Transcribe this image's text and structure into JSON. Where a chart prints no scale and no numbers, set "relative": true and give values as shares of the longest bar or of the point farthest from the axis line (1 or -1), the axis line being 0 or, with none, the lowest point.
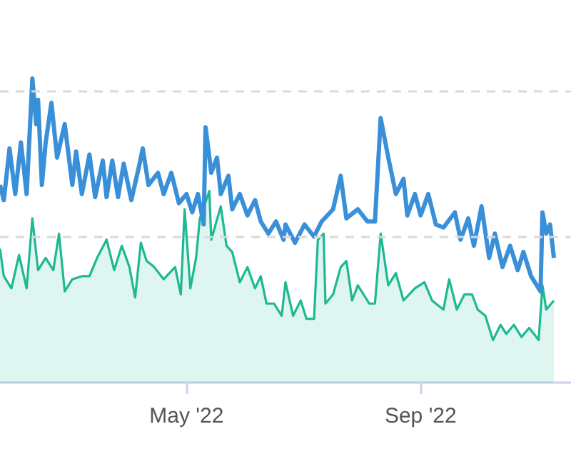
{
  "chart_data": {
    "type": "line",
    "relative": true,
    "xlim": [
      "2022-01-23",
      "2022-11-19"
    ],
    "ref_lines": [
      {
        "axis": "y",
        "value": 0.96,
        "color": "#d9d9d9",
        "line_style": "dashed"
      },
      {
        "axis": "y",
        "value": 0.48,
        "color": "#d9d9d9",
        "line_style": "dashed"
      }
    ],
    "xticks": [
      {
        "value": "2022-05-01",
        "label": "May '22"
      },
      {
        "value": "2022-09-01",
        "label": "Sep '22"
      }
    ],
    "series": [
      {
        "color": "#3a8fd9",
        "x": [
          "2022-01-23",
          "2022-01-25",
          "2022-01-28",
          "2022-01-31",
          "2022-02-03",
          "2022-02-06",
          "2022-02-09",
          "2022-02-11",
          "2022-02-12",
          "2022-02-14",
          "2022-02-16",
          "2022-02-19",
          "2022-02-22",
          "2022-02-26",
          "2022-03-02",
          "2022-03-04",
          "2022-03-07",
          "2022-03-11",
          "2022-03-14",
          "2022-03-18",
          "2022-03-20",
          "2022-03-23",
          "2022-03-26",
          "2022-03-29",
          "2022-04-02",
          "2022-04-06",
          "2022-04-08",
          "2022-04-11",
          "2022-04-16",
          "2022-04-19",
          "2022-04-23",
          "2022-04-27",
          "2022-05-01",
          "2022-05-04",
          "2022-05-07",
          "2022-05-10",
          "2022-05-11",
          "2022-05-14",
          "2022-05-17",
          "2022-05-19",
          "2022-05-23",
          "2022-05-25",
          "2022-05-29",
          "2022-06-02",
          "2022-06-06",
          "2022-06-09",
          "2022-06-13",
          "2022-06-17",
          "2022-06-21",
          "2022-06-22",
          "2022-06-27",
          "2022-07-02",
          "2022-07-07",
          "2022-07-11",
          "2022-07-17",
          "2022-07-21",
          "2022-07-24",
          "2022-07-30",
          "2022-08-04",
          "2022-08-08",
          "2022-08-11",
          "2022-08-15",
          "2022-08-19",
          "2022-08-23",
          "2022-08-25",
          "2022-08-29",
          "2022-09-01",
          "2022-09-05",
          "2022-09-09",
          "2022-09-13",
          "2022-09-19",
          "2022-09-22",
          "2022-09-26",
          "2022-09-29",
          "2022-10-03",
          "2022-10-07",
          "2022-10-10",
          "2022-10-14",
          "2022-10-18",
          "2022-10-22",
          "2022-10-25",
          "2022-10-29",
          "2022-11-03",
          "2022-11-04",
          "2022-11-06",
          "2022-11-08",
          "2022-11-10"
        ],
        "values": [
          0.65,
          0.6,
          0.77,
          0.62,
          0.79,
          0.62,
          1.0,
          0.85,
          0.93,
          0.65,
          0.79,
          0.92,
          0.74,
          0.85,
          0.65,
          0.76,
          0.62,
          0.75,
          0.61,
          0.73,
          0.61,
          0.73,
          0.61,
          0.72,
          0.6,
          0.71,
          0.77,
          0.65,
          0.69,
          0.62,
          0.69,
          0.59,
          0.62,
          0.56,
          0.62,
          0.52,
          0.84,
          0.69,
          0.74,
          0.62,
          0.68,
          0.57,
          0.62,
          0.55,
          0.6,
          0.53,
          0.49,
          0.53,
          0.47,
          0.52,
          0.46,
          0.52,
          0.48,
          0.53,
          0.57,
          0.68,
          0.54,
          0.57,
          0.53,
          0.53,
          0.87,
          0.74,
          0.62,
          0.67,
          0.55,
          0.62,
          0.55,
          0.62,
          0.52,
          0.51,
          0.56,
          0.47,
          0.54,
          0.45,
          0.58,
          0.41,
          0.49,
          0.38,
          0.45,
          0.37,
          0.43,
          0.35,
          0.3,
          0.56,
          0.49,
          0.52,
          0.41
        ]
      },
      {
        "type": "area",
        "color": "#1db992",
        "x": [
          "2022-01-23",
          "2022-01-25",
          "2022-01-29",
          "2022-02-02",
          "2022-02-06",
          "2022-02-09",
          "2022-02-12",
          "2022-02-16",
          "2022-02-20",
          "2022-02-23",
          "2022-02-26",
          "2022-03-02",
          "2022-03-07",
          "2022-03-11",
          "2022-03-15",
          "2022-03-20",
          "2022-03-24",
          "2022-03-28",
          "2022-04-01",
          "2022-04-04",
          "2022-04-07",
          "2022-04-10",
          "2022-04-14",
          "2022-04-19",
          "2022-04-25",
          "2022-04-28",
          "2022-04-30",
          "2022-05-03",
          "2022-05-06",
          "2022-05-08",
          "2022-05-13",
          "2022-05-14",
          "2022-05-19",
          "2022-05-22",
          "2022-05-25",
          "2022-05-29",
          "2022-06-02",
          "2022-06-06",
          "2022-06-09",
          "2022-06-12",
          "2022-06-16",
          "2022-06-20",
          "2022-06-22",
          "2022-06-26",
          "2022-06-30",
          "2022-07-03",
          "2022-07-07",
          "2022-07-09",
          "2022-07-12",
          "2022-07-13",
          "2022-07-17",
          "2022-07-21",
          "2022-07-24",
          "2022-07-27",
          "2022-07-30",
          "2022-08-05",
          "2022-08-08",
          "2022-08-11",
          "2022-08-15",
          "2022-08-19",
          "2022-08-23",
          "2022-08-29",
          "2022-09-03",
          "2022-09-07",
          "2022-09-13",
          "2022-09-16",
          "2022-09-20",
          "2022-09-24",
          "2022-09-28",
          "2022-10-01",
          "2022-10-05",
          "2022-10-09",
          "2022-10-13",
          "2022-10-16",
          "2022-10-20",
          "2022-10-24",
          "2022-10-28",
          "2022-11-02",
          "2022-11-04",
          "2022-11-06",
          "2022-11-10"
        ],
        "values": [
          0.44,
          0.35,
          0.31,
          0.42,
          0.31,
          0.54,
          0.37,
          0.41,
          0.37,
          0.49,
          0.3,
          0.34,
          0.35,
          0.35,
          0.41,
          0.47,
          0.37,
          0.45,
          0.38,
          0.28,
          0.46,
          0.4,
          0.38,
          0.34,
          0.38,
          0.29,
          0.57,
          0.31,
          0.41,
          0.54,
          0.63,
          0.47,
          0.58,
          0.45,
          0.43,
          0.33,
          0.38,
          0.31,
          0.35,
          0.26,
          0.26,
          0.22,
          0.33,
          0.22,
          0.27,
          0.21,
          0.21,
          0.47,
          0.49,
          0.26,
          0.29,
          0.38,
          0.4,
          0.27,
          0.32,
          0.26,
          0.26,
          0.49,
          0.32,
          0.36,
          0.27,
          0.31,
          0.33,
          0.27,
          0.24,
          0.34,
          0.24,
          0.29,
          0.29,
          0.24,
          0.22,
          0.14,
          0.19,
          0.16,
          0.19,
          0.15,
          0.18,
          0.14,
          0.32,
          0.24,
          0.27
        ]
      }
    ]
  }
}
